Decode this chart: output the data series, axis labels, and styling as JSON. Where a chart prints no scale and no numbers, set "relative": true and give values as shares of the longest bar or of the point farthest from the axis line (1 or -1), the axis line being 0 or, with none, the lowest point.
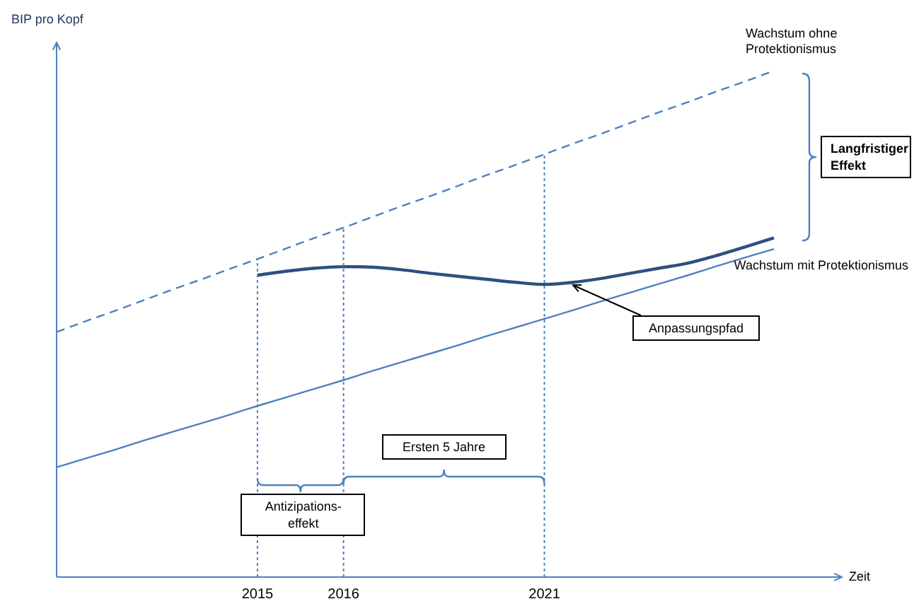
{
  "chart_data": {
    "type": "line",
    "relative": true,
    "ylabel": "BIP pro Kopf",
    "xlabel": "Zeit",
    "categories": [
      null,
      null,
      null,
      null,
      null,
      null,
      null,
      "2015",
      null,
      null,
      "2016",
      null,
      null,
      null,
      null,
      null,
      null,
      "2021",
      null,
      null,
      null,
      null,
      null,
      null,
      null,
      null
    ],
    "series": [
      {
        "name": "Wachstum ohne Protektionismus",
        "color": "#4f81bd",
        "line_style": "dashed",
        "values": [
          0.484,
          0.505,
          0.525,
          0.546,
          0.567,
          0.587,
          0.608,
          0.628,
          0.649,
          0.67,
          0.69,
          0.711,
          0.732,
          0.752,
          0.773,
          0.794,
          0.814,
          0.835,
          0.856,
          0.876,
          0.897,
          0.918,
          0.938,
          0.959,
          0.979,
          1.0
        ]
      },
      {
        "name": "Wachstum mit Protektionismus",
        "color": "#4f81bd",
        "line_style": "solid",
        "values": [
          0.217,
          0.234,
          0.251,
          0.269,
          0.286,
          0.303,
          0.32,
          0.338,
          0.355,
          0.372,
          0.389,
          0.407,
          0.424,
          0.441,
          0.458,
          0.476,
          0.493,
          0.51,
          0.527,
          0.545,
          0.562,
          0.579,
          0.596,
          0.614,
          0.631,
          0.648
        ]
      },
      {
        "name": "Anpassungspfad",
        "color": "#2f4f80",
        "line_style": "solid",
        "values": [
          null,
          null,
          null,
          null,
          null,
          null,
          null,
          0.596,
          0.604,
          0.61,
          0.613,
          0.612,
          0.607,
          0.6,
          0.594,
          0.588,
          0.582,
          0.578,
          0.582,
          0.59,
          0.6,
          0.61,
          0.62,
          0.635,
          0.652,
          0.67
        ]
      }
    ],
    "ref_lines": [
      {
        "axis": "x",
        "value": "2015",
        "color": "#4f81bd",
        "line_style": "dotted"
      },
      {
        "axis": "x",
        "value": "2016",
        "color": "#4f81bd",
        "line_style": "dotted"
      },
      {
        "axis": "x",
        "value": "2021",
        "color": "#4f81bd",
        "line_style": "dotted"
      }
    ],
    "annotations": [
      "Langfristiger Effekt",
      "Ersten 5 Jahre",
      "Antizipations-effekt"
    ],
    "legend": false,
    "grid": false,
    "marker": "none"
  }
}
